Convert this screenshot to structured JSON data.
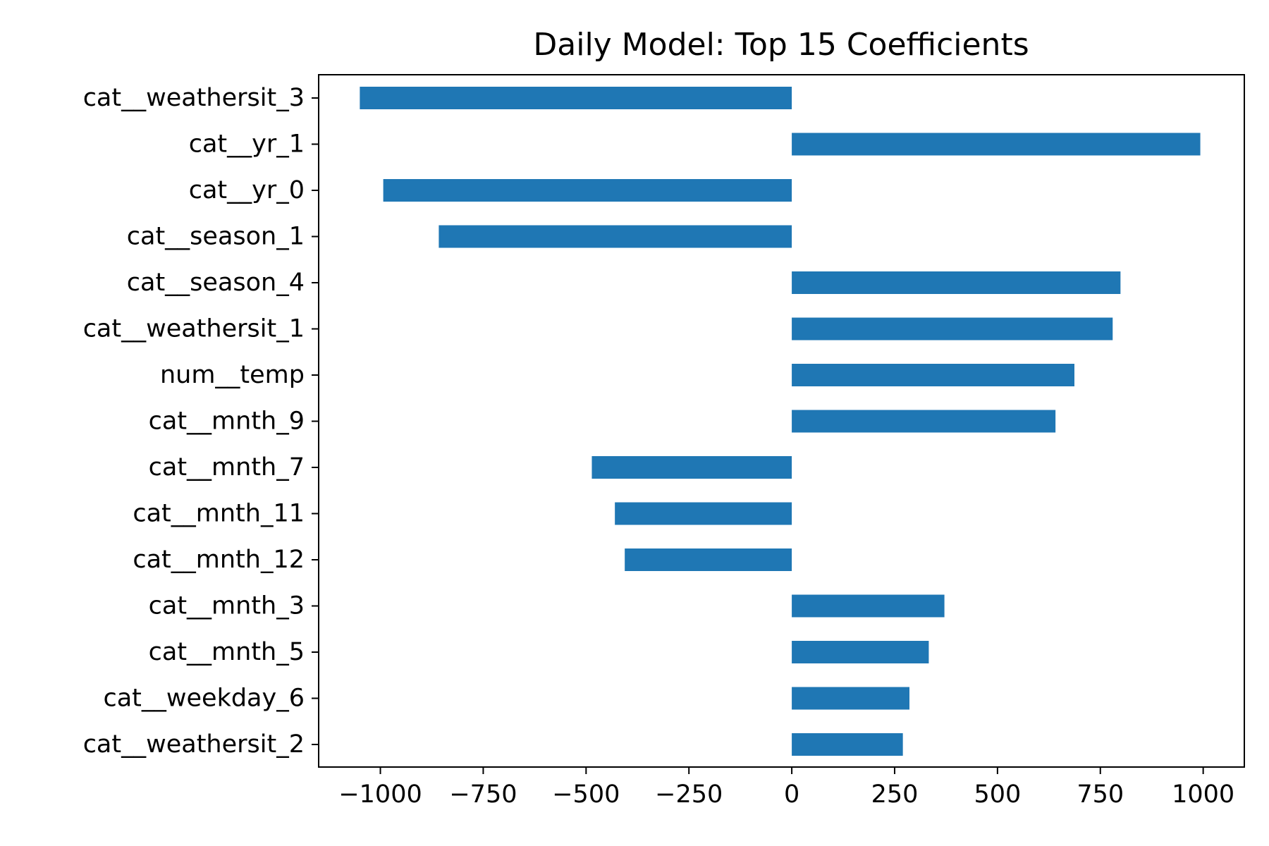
{
  "chart_data": {
    "type": "bar",
    "orientation": "horizontal",
    "title": "Daily Model: Top 15 Coefficients",
    "xlabel": "",
    "ylabel": "",
    "xlim": [
      -1150,
      1100
    ],
    "xticks": [
      -1000,
      -750,
      -500,
      -250,
      0,
      250,
      500,
      750,
      1000
    ],
    "grid": false,
    "color": "#1f77b4",
    "categories": [
      "cat__weathersit_3",
      "cat__yr_1",
      "cat__yr_0",
      "cat__season_1",
      "cat__season_4",
      "cat__weathersit_1",
      "num__temp",
      "cat__mnth_9",
      "cat__mnth_7",
      "cat__mnth_11",
      "cat__mnth_12",
      "cat__mnth_3",
      "cat__mnth_5",
      "cat__weekday_6",
      "cat__weathersit_2"
    ],
    "values": [
      -1050,
      993,
      -993,
      -858,
      799,
      780,
      687,
      641,
      -486,
      -430,
      -406,
      371,
      333,
      286,
      270
    ]
  }
}
